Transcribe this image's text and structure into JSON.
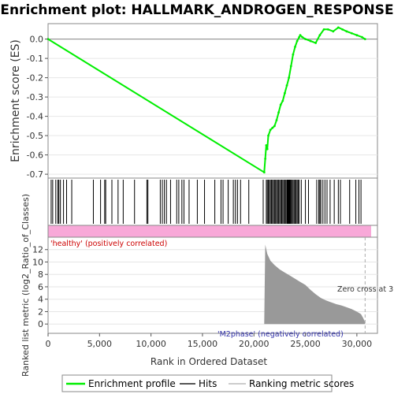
{
  "chart_data": {
    "type": "line",
    "title": "Enrichment plot: HALLMARK_ANDROGEN_RESPONSE",
    "top_panel": {
      "ylabel": "Enrichment score (ES)",
      "ylim": [
        -0.72,
        0.08
      ],
      "yticks": [
        "0.0",
        "-0.1",
        "-0.2",
        "-0.3",
        "-0.4",
        "-0.5",
        "-0.6",
        "-0.7"
      ],
      "series": [
        {
          "name": "Enrichment profile",
          "color": "#00ee00",
          "x": [
            0,
            21000,
            21100,
            21200,
            21300,
            21400,
            21600,
            21800,
            22000,
            22200,
            22400,
            22600,
            22800,
            23000,
            23200,
            23400,
            23600,
            23800,
            24000,
            24200,
            24400,
            24500,
            24700,
            25000,
            25500,
            26000,
            26400,
            26800,
            27200,
            27700,
            28200,
            28600,
            29000,
            29500,
            30000,
            30500,
            30800
          ],
          "y": [
            0.0,
            -0.69,
            -0.62,
            -0.55,
            -0.57,
            -0.5,
            -0.47,
            -0.46,
            -0.45,
            -0.42,
            -0.38,
            -0.34,
            -0.32,
            -0.28,
            -0.24,
            -0.2,
            -0.14,
            -0.08,
            -0.04,
            -0.01,
            0.01,
            0.02,
            0.01,
            0.0,
            -0.01,
            -0.02,
            0.02,
            0.05,
            0.05,
            0.04,
            0.06,
            0.05,
            0.04,
            0.03,
            0.02,
            0.01,
            0.0
          ]
        }
      ]
    },
    "hits": {
      "name": "Hits",
      "color": "#000000",
      "x": [
        300,
        450,
        750,
        950,
        1050,
        1200,
        1500,
        1800,
        2300,
        4400,
        5100,
        5500,
        5600,
        6200,
        6800,
        7300,
        8400,
        9600,
        9700,
        10900,
        11100,
        11300,
        11500,
        11900,
        12500,
        12700,
        13000,
        13200,
        13700,
        14500,
        15200,
        16200,
        16800,
        17000,
        17500,
        18000,
        18200,
        18400,
        18700,
        19500,
        20900,
        21200,
        21300,
        21400,
        21500,
        21600,
        21700,
        21800,
        21900,
        22000,
        22100,
        22200,
        22300,
        22400,
        22500,
        22600,
        22700,
        22800,
        22900,
        23000,
        23100,
        23200,
        23250,
        23300,
        23350,
        23400,
        23450,
        23500,
        23550,
        23600,
        23700,
        23800,
        23900,
        24000,
        24100,
        24200,
        24300,
        24400,
        24600,
        25000,
        25300,
        26100,
        26300,
        26400,
        26500,
        26700,
        26900,
        27100,
        27400,
        27800,
        28200,
        28400,
        29300,
        29900,
        30200,
        30400
      ]
    },
    "ranking_panel": {
      "ylabel": "Ranked list metric (log2_Ratio_of_Classes)",
      "ylim": [
        -1.5,
        14
      ],
      "yticks": [
        "0",
        "2",
        "4",
        "6",
        "8",
        "10",
        "12"
      ],
      "series": [
        {
          "name": "Ranking metric scores",
          "color": "#999999",
          "x": [
            0,
            16200,
            21000,
            21100,
            21300,
            21600,
            22000,
            22500,
            23000,
            23500,
            24000,
            24500,
            25000,
            25500,
            26000,
            26500,
            27000,
            27500,
            28000,
            28500,
            29000,
            29500,
            30000,
            30400,
            30600,
            30800
          ],
          "y": [
            0,
            0,
            0,
            12.8,
            11.3,
            10.2,
            9.5,
            8.8,
            8.3,
            7.8,
            7.3,
            6.8,
            6.3,
            5.5,
            4.8,
            4.2,
            3.8,
            3.5,
            3.2,
            3.0,
            2.7,
            2.4,
            2.0,
            1.6,
            1.0,
            0.3
          ]
        }
      ],
      "annotations": {
        "positive": "'healthy' (positively correlated)",
        "negative": "'M2phase' (negatively correlated)",
        "zero_cross": "Zero cross at 3"
      }
    },
    "xlabel": "Rank in Ordered Dataset",
    "xlim": [
      0,
      32000
    ],
    "xticks": [
      "0",
      "5,000",
      "10,000",
      "15,000",
      "20,000",
      "25,000",
      "30,000"
    ],
    "legend": {
      "placement": "bottom",
      "items": [
        "Enrichment profile",
        "Hits",
        "Ranking metric scores"
      ]
    }
  }
}
